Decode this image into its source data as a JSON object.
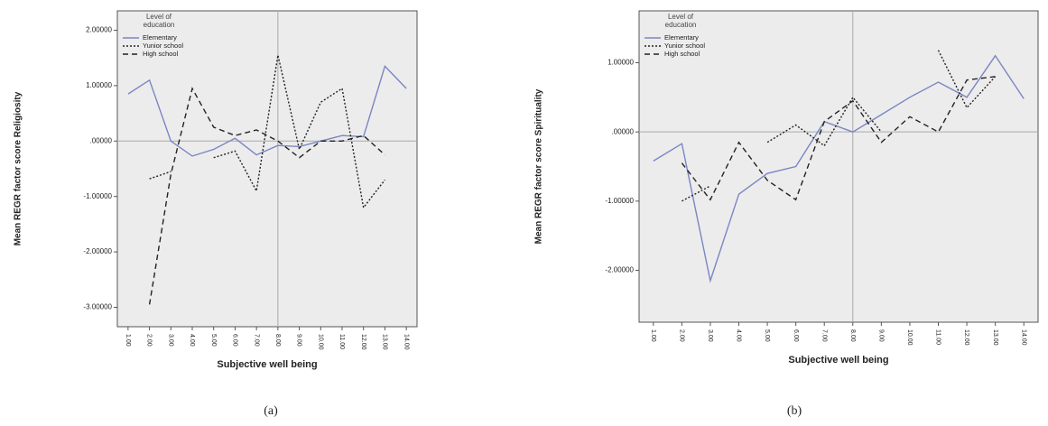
{
  "chart_data": [
    {
      "type": "line",
      "y_label": "Mean REGR factor score Religiosity",
      "x_label": "Subjective well being",
      "caption": "(a)",
      "legend_title": "Level of education",
      "categories": [
        "1.00",
        "2.00",
        "3.00",
        "4.00",
        "5.00",
        "6.00",
        "7.00",
        "8.00",
        "9.00",
        "10.00",
        "11.00",
        "12.00",
        "13.00",
        "14.00"
      ],
      "series": [
        {
          "name": "Elementary",
          "color": "#7b86c2",
          "dash": "solid",
          "values": [
            0.85,
            1.1,
            0.0,
            -0.27,
            -0.15,
            0.05,
            -0.25,
            -0.08,
            -0.1,
            0.0,
            0.1,
            0.08,
            1.35,
            0.95
          ]
        },
        {
          "name": "Yunior school",
          "color": "#222222",
          "dash": "dotted",
          "values": [
            null,
            -0.68,
            -0.55,
            null,
            -0.3,
            -0.18,
            -0.9,
            1.55,
            -0.15,
            0.7,
            0.95,
            -1.2,
            -0.7,
            null
          ]
        },
        {
          "name": "High school",
          "color": "#222222",
          "dash": "dashed",
          "values": [
            null,
            -2.95,
            -0.6,
            0.95,
            0.25,
            0.1,
            0.2,
            0.0,
            -0.3,
            0.0,
            0.0,
            0.1,
            -0.25,
            null
          ]
        }
      ],
      "ylim": [
        -3.35,
        2.35
      ],
      "yticks": [
        {
          "value": 2,
          "label": "2.00000"
        },
        {
          "value": 1,
          "label": "1.00000"
        },
        {
          "value": 0,
          "label": ".00000"
        },
        {
          "value": -1,
          "label": "-1.00000"
        },
        {
          "value": -2,
          "label": "-2.00000"
        },
        {
          "value": -3,
          "label": "-3.00000"
        }
      ],
      "reference_x": "8.00",
      "reference_y": 0
    },
    {
      "type": "line",
      "y_label": "Mean REGR factor score Spirituality",
      "x_label": "Subjective well being",
      "caption": "(b)",
      "legend_title": "Level of education",
      "categories": [
        "1.00",
        "2.00",
        "3.00",
        "4.00",
        "5.00",
        "6.00",
        "7.00",
        "8.00",
        "9.00",
        "10.00",
        "11.00",
        "12.00",
        "13.00",
        "14.00"
      ],
      "series": [
        {
          "name": "Elementary",
          "color": "#7b86c2",
          "dash": "solid",
          "values": [
            -0.42,
            -0.17,
            -2.15,
            -0.9,
            -0.6,
            -0.5,
            0.15,
            0.0,
            0.25,
            0.5,
            0.72,
            0.5,
            1.1,
            0.48
          ]
        },
        {
          "name": "Yunior school",
          "color": "#222222",
          "dash": "dotted",
          "values": [
            null,
            -1.0,
            -0.78,
            null,
            -0.15,
            0.1,
            -0.2,
            0.5,
            0.0,
            null,
            1.18,
            0.35,
            0.8,
            null
          ]
        },
        {
          "name": "High school",
          "color": "#222222",
          "dash": "dashed",
          "values": [
            null,
            -0.45,
            -0.98,
            -0.15,
            -0.7,
            -0.98,
            0.15,
            0.45,
            -0.15,
            0.22,
            0.0,
            0.75,
            0.8,
            null
          ]
        }
      ],
      "ylim": [
        -2.75,
        1.75
      ],
      "yticks": [
        {
          "value": 1,
          "label": "1.00000"
        },
        {
          "value": 0,
          "label": ".00000"
        },
        {
          "value": -1,
          "label": "-1.00000"
        },
        {
          "value": -2,
          "label": "-2.00000"
        }
      ],
      "reference_x": "8.00",
      "reference_y": 0
    }
  ]
}
